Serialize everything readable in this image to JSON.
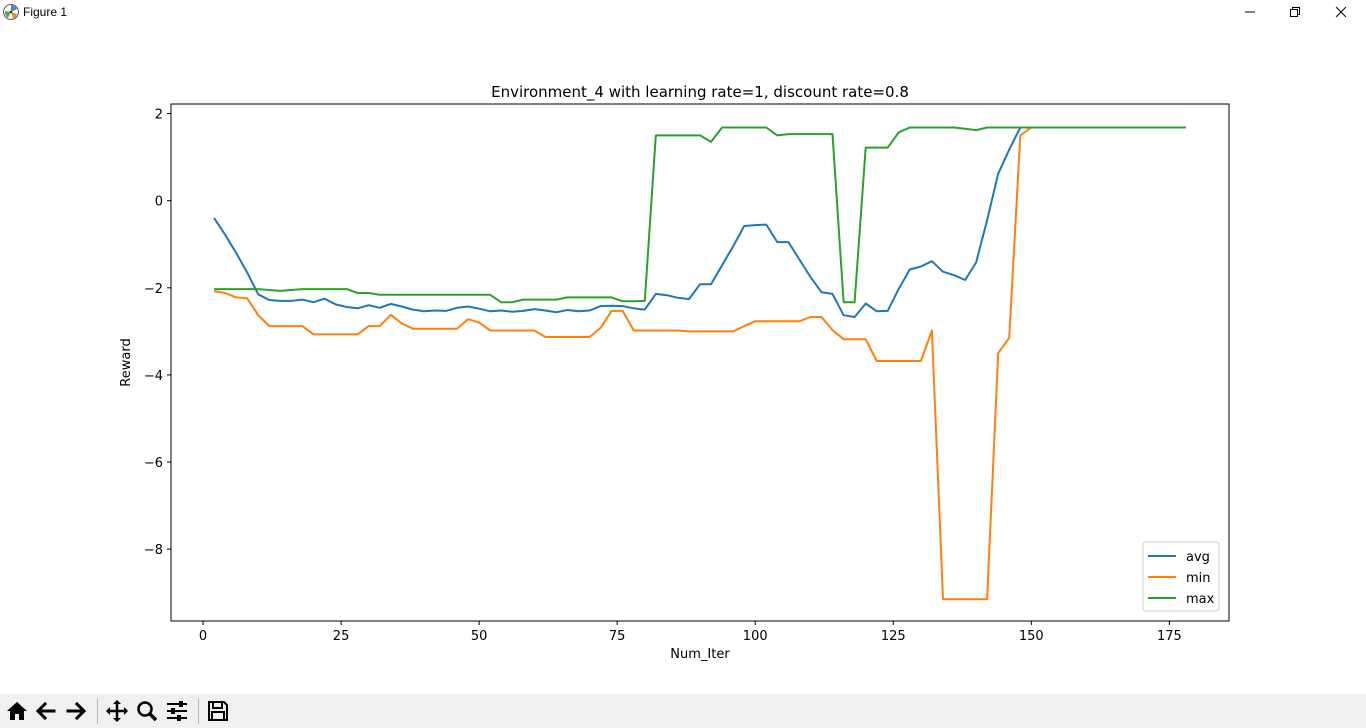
{
  "window": {
    "title": "Figure 1",
    "icon": "matplotlib-logo-icon",
    "controls": [
      "minimize-icon",
      "restore-icon",
      "close-icon"
    ]
  },
  "toolbar": {
    "buttons": [
      {
        "name": "home",
        "icon": "home-icon"
      },
      {
        "name": "back",
        "icon": "arrow-left-icon"
      },
      {
        "name": "forward",
        "icon": "arrow-right-icon"
      },
      {
        "name": "pan",
        "icon": "move-arrows-icon"
      },
      {
        "name": "zoom",
        "icon": "magnifier-icon"
      },
      {
        "name": "configure-subplots",
        "icon": "sliders-icon"
      },
      {
        "name": "save",
        "icon": "floppy-disk-icon"
      }
    ]
  },
  "chart_data": {
    "type": "line",
    "title": "Environment_4 with learning rate=1, discount rate=0.8",
    "xlabel": "Num_Iter",
    "ylabel": "Reward",
    "xlim": [
      -5.8,
      185.8
    ],
    "ylim": [
      -9.65,
      2.22
    ],
    "xticks": [
      0,
      25,
      50,
      75,
      100,
      125,
      150,
      175
    ],
    "yticks": [
      -8,
      -6,
      -4,
      -2,
      0,
      2
    ],
    "ytick_labels": [
      "−8",
      "−6",
      "−4",
      "−2",
      "0",
      "2"
    ],
    "grid": false,
    "legend": "lower right",
    "series": [
      {
        "name": "avg",
        "color": "#1f77b4",
        "x": [
          2,
          4,
          6,
          8,
          10,
          12,
          14,
          16,
          18,
          20,
          22,
          24,
          26,
          28,
          30,
          32,
          34,
          36,
          38,
          40,
          42,
          44,
          46,
          48,
          50,
          52,
          54,
          56,
          58,
          60,
          62,
          64,
          66,
          68,
          70,
          72,
          74,
          76,
          78,
          80,
          82,
          84,
          86,
          88,
          90,
          92,
          94,
          96,
          98,
          100,
          102,
          104,
          106,
          108,
          110,
          112,
          114,
          116,
          118,
          120,
          122,
          124,
          126,
          128,
          130,
          132,
          134,
          136,
          138,
          140,
          142,
          144,
          146,
          148,
          150,
          152,
          154,
          156,
          158,
          160,
          162,
          164,
          166,
          168,
          170,
          172,
          174,
          176,
          178
        ],
        "y": [
          -0.4,
          -0.78,
          -1.2,
          -1.65,
          -2.15,
          -2.28,
          -2.3,
          -2.3,
          -2.27,
          -2.33,
          -2.25,
          -2.38,
          -2.44,
          -2.47,
          -2.4,
          -2.46,
          -2.37,
          -2.43,
          -2.5,
          -2.54,
          -2.52,
          -2.53,
          -2.46,
          -2.43,
          -2.48,
          -2.54,
          -2.52,
          -2.55,
          -2.53,
          -2.49,
          -2.52,
          -2.56,
          -2.51,
          -2.54,
          -2.52,
          -2.42,
          -2.41,
          -2.42,
          -2.47,
          -2.5,
          -2.14,
          -2.17,
          -2.23,
          -2.26,
          -1.92,
          -1.92,
          -1.48,
          -1.05,
          -0.58,
          -0.56,
          -0.55,
          -0.95,
          -0.95,
          -1.35,
          -1.75,
          -2.1,
          -2.14,
          -2.63,
          -2.67,
          -2.36,
          -2.54,
          -2.53,
          -2.02,
          -1.58,
          -1.51,
          -1.39,
          -1.63,
          -1.71,
          -1.82,
          -1.42,
          -0.45,
          0.62,
          1.17,
          1.68,
          1.68,
          1.68,
          1.68,
          1.68,
          1.68,
          1.68,
          1.68,
          1.68,
          1.68,
          1.68,
          1.68,
          1.68,
          1.68,
          1.68,
          1.68
        ]
      },
      {
        "name": "min",
        "color": "#ff7f0e",
        "x": [
          2,
          4,
          6,
          8,
          10,
          12,
          14,
          16,
          18,
          20,
          22,
          24,
          26,
          28,
          30,
          32,
          34,
          36,
          38,
          40,
          42,
          44,
          46,
          48,
          50,
          52,
          54,
          56,
          58,
          60,
          62,
          64,
          66,
          68,
          70,
          72,
          74,
          76,
          78,
          80,
          82,
          84,
          86,
          88,
          90,
          92,
          94,
          96,
          98,
          100,
          102,
          104,
          106,
          108,
          110,
          112,
          114,
          116,
          118,
          120,
          122,
          124,
          126,
          128,
          130,
          132,
          134,
          136,
          138,
          140,
          142,
          144,
          146,
          148,
          150,
          152,
          154,
          156,
          158,
          160,
          162,
          164,
          166,
          168,
          170,
          172,
          174,
          176,
          178
        ],
        "y": [
          -2.08,
          -2.12,
          -2.22,
          -2.24,
          -2.63,
          -2.88,
          -2.88,
          -2.88,
          -2.88,
          -3.07,
          -3.07,
          -3.07,
          -3.07,
          -3.07,
          -2.88,
          -2.88,
          -2.62,
          -2.82,
          -2.94,
          -2.94,
          -2.94,
          -2.94,
          -2.94,
          -2.72,
          -2.8,
          -2.98,
          -2.98,
          -2.98,
          -2.98,
          -2.98,
          -3.13,
          -3.13,
          -3.13,
          -3.13,
          -3.13,
          -2.92,
          -2.53,
          -2.53,
          -2.98,
          -2.98,
          -2.98,
          -2.98,
          -2.98,
          -3.0,
          -3.0,
          -3.0,
          -3.0,
          -3.0,
          -2.88,
          -2.77,
          -2.77,
          -2.77,
          -2.77,
          -2.77,
          -2.67,
          -2.67,
          -2.97,
          -3.18,
          -3.18,
          -3.18,
          -3.68,
          -3.68,
          -3.68,
          -3.68,
          -3.68,
          -2.98,
          -9.15,
          -9.15,
          -9.15,
          -9.15,
          -9.15,
          -3.5,
          -3.15,
          1.5,
          1.68,
          1.68,
          1.68,
          1.68,
          1.68,
          1.68,
          1.68,
          1.68,
          1.68,
          1.68,
          1.68,
          1.68,
          1.68,
          1.68,
          1.68
        ]
      },
      {
        "name": "max",
        "color": "#2ca02c",
        "x": [
          2,
          4,
          6,
          8,
          10,
          12,
          14,
          16,
          18,
          20,
          22,
          24,
          26,
          28,
          30,
          32,
          34,
          36,
          38,
          40,
          42,
          44,
          46,
          48,
          50,
          52,
          54,
          56,
          58,
          60,
          62,
          64,
          66,
          68,
          70,
          72,
          74,
          76,
          78,
          80,
          82,
          84,
          86,
          88,
          90,
          92,
          94,
          96,
          98,
          100,
          102,
          104,
          106,
          108,
          110,
          112,
          114,
          116,
          118,
          120,
          122,
          124,
          126,
          128,
          130,
          132,
          134,
          136,
          138,
          140,
          142,
          144,
          146,
          148,
          150,
          152,
          154,
          156,
          158,
          160,
          162,
          164,
          166,
          168,
          170,
          172,
          174,
          176,
          178
        ],
        "y": [
          -2.03,
          -2.03,
          -2.03,
          -2.03,
          -2.03,
          -2.05,
          -2.07,
          -2.05,
          -2.03,
          -2.03,
          -2.03,
          -2.03,
          -2.03,
          -2.12,
          -2.12,
          -2.16,
          -2.16,
          -2.16,
          -2.16,
          -2.16,
          -2.16,
          -2.16,
          -2.16,
          -2.16,
          -2.16,
          -2.16,
          -2.33,
          -2.33,
          -2.27,
          -2.27,
          -2.27,
          -2.27,
          -2.22,
          -2.22,
          -2.22,
          -2.22,
          -2.22,
          -2.31,
          -2.31,
          -2.3,
          1.5,
          1.5,
          1.5,
          1.5,
          1.5,
          1.35,
          1.68,
          1.68,
          1.68,
          1.68,
          1.68,
          1.5,
          1.53,
          1.53,
          1.53,
          1.53,
          1.53,
          -2.33,
          -2.33,
          1.22,
          1.22,
          1.22,
          1.57,
          1.68,
          1.68,
          1.68,
          1.68,
          1.68,
          1.65,
          1.62,
          1.68,
          1.68,
          1.68,
          1.68,
          1.68,
          1.68,
          1.68,
          1.68,
          1.68,
          1.68,
          1.68,
          1.68,
          1.68,
          1.68,
          1.68,
          1.68,
          1.68,
          1.68,
          1.68
        ]
      }
    ]
  }
}
